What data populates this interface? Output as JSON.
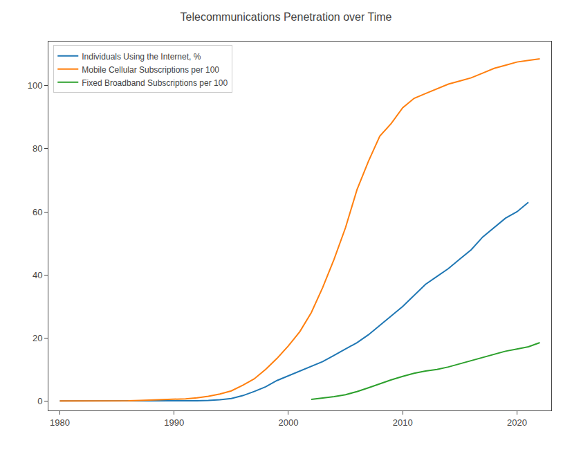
{
  "chart_data": {
    "type": "line",
    "title": "Telecommunications Penetration over Time",
    "x": [
      1980,
      1981,
      1982,
      1983,
      1984,
      1985,
      1986,
      1987,
      1988,
      1989,
      1990,
      1991,
      1992,
      1993,
      1994,
      1995,
      1996,
      1997,
      1998,
      1999,
      2000,
      2001,
      2002,
      2003,
      2004,
      2005,
      2006,
      2007,
      2008,
      2009,
      2010,
      2011,
      2012,
      2013,
      2014,
      2015,
      2016,
      2017,
      2018,
      2019,
      2020,
      2021,
      2022
    ],
    "series": [
      {
        "name": "Individuals Using the Internet, %",
        "color": "#1f77b4",
        "values": [
          0.0,
          0.0,
          0.0,
          0.0,
          0.0,
          0.0,
          0.0,
          0.0,
          0.0,
          0.0,
          0.0,
          0.0,
          0.1,
          0.2,
          0.4,
          0.8,
          1.7,
          3.0,
          4.5,
          6.5,
          8.0,
          9.5,
          11.0,
          12.5,
          14.5,
          16.5,
          18.5,
          21.0,
          24.0,
          27.0,
          30.0,
          33.5,
          37.0,
          39.5,
          42.0,
          45.0,
          48.0,
          52.0,
          55.0,
          58.0,
          60.0,
          63.0,
          null
        ]
      },
      {
        "name": "Mobile Cellular Subscriptions per 100",
        "color": "#ff7f0e",
        "values": [
          0.0,
          0.0,
          0.0,
          0.0,
          0.0,
          0.1,
          0.1,
          0.2,
          0.3,
          0.4,
          0.5,
          0.7,
          1.0,
          1.5,
          2.2,
          3.2,
          5.0,
          7.0,
          10.0,
          13.5,
          17.5,
          22.0,
          28.0,
          36.0,
          45.0,
          55.0,
          67.0,
          76.0,
          84.0,
          88.0,
          93.0,
          96.0,
          97.5,
          99.0,
          100.5,
          101.5,
          102.5,
          104.0,
          105.5,
          106.5,
          107.5,
          108.0,
          108.5
        ]
      },
      {
        "name": "Fixed Broadband Subscriptions per 100",
        "color": "#2ca02c",
        "values": [
          null,
          null,
          null,
          null,
          null,
          null,
          null,
          null,
          null,
          null,
          null,
          null,
          null,
          null,
          null,
          null,
          null,
          null,
          null,
          null,
          null,
          null,
          0.5,
          0.9,
          1.4,
          2.0,
          3.0,
          4.2,
          5.5,
          6.7,
          7.8,
          8.8,
          9.5,
          10.0,
          10.8,
          11.8,
          12.8,
          13.8,
          14.8,
          15.8,
          16.5,
          17.2,
          18.5
        ]
      }
    ],
    "xlim": [
      1979,
      2023
    ],
    "ylim": [
      -3,
      114
    ],
    "xticks": [
      1980,
      1990,
      2000,
      2010,
      2020
    ],
    "yticks": [
      0,
      20,
      40,
      60,
      80,
      100
    ],
    "grid": false,
    "legend": "upper left"
  }
}
